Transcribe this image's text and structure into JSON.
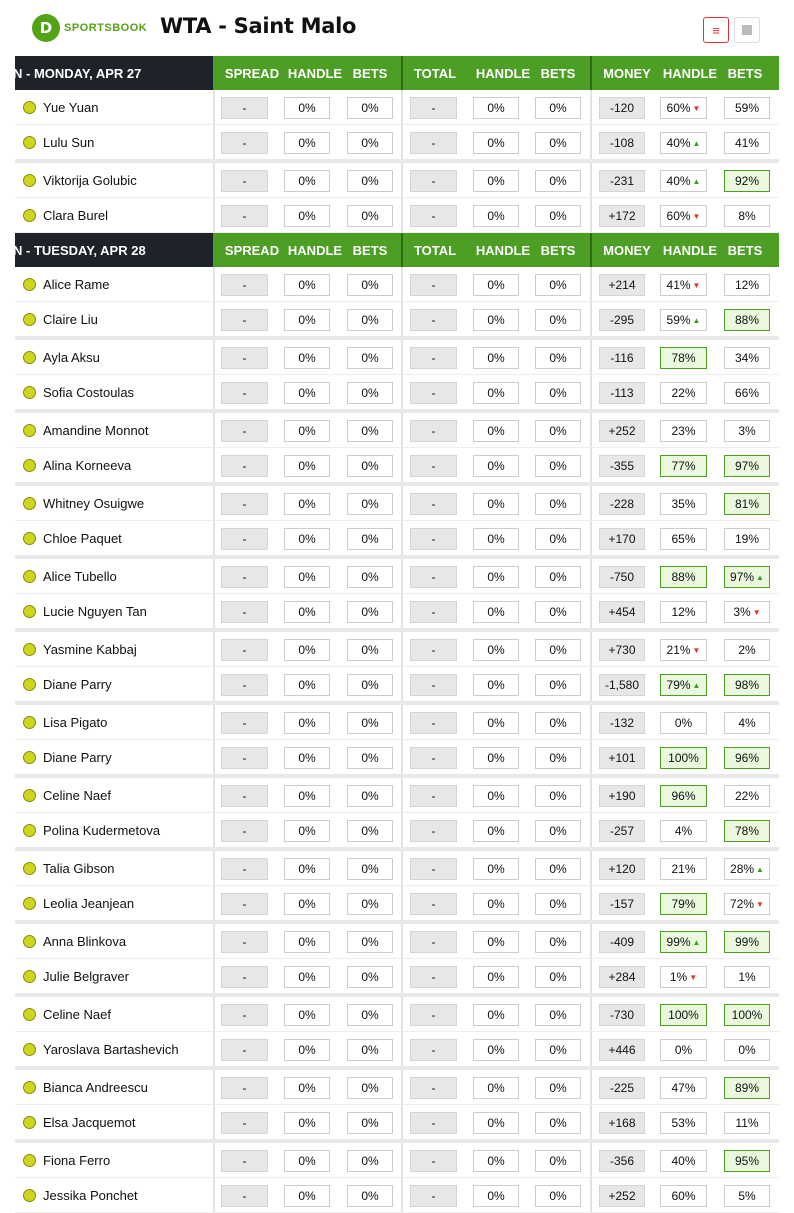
{
  "header": {
    "logo_letter": "D",
    "logo_text": "SPORTSBOOK",
    "title": "WTA - Saint Malo",
    "list_icon": "≡"
  },
  "columns": [
    "SPREAD",
    "HANDLE",
    "BETS",
    "TOTAL",
    "HANDLE",
    "BETS",
    "MONEY",
    "HANDLE",
    "BETS"
  ],
  "colors": {
    "accent_green": "#4c9e24",
    "dark": "#1e2329",
    "highlight": "#eaf8de",
    "up": "#3a9e1f",
    "down": "#dd3333"
  },
  "sections": [
    {
      "date": "N - MONDAY, APR 27",
      "players": [
        {
          "name": "Yue Yuan",
          "spread": "-",
          "s_handle": "0%",
          "s_bets": "0%",
          "total": "-",
          "t_handle": "0%",
          "t_bets": "0%",
          "money": "-120",
          "m_handle": "60%",
          "mh_arrow": "down",
          "mh_hl": false,
          "m_bets": "59%",
          "mb_arrow": "",
          "mb_hl": false,
          "gap": false
        },
        {
          "name": "Lulu Sun",
          "spread": "-",
          "s_handle": "0%",
          "s_bets": "0%",
          "total": "-",
          "t_handle": "0%",
          "t_bets": "0%",
          "money": "-108",
          "m_handle": "40%",
          "mh_arrow": "up",
          "mh_hl": false,
          "m_bets": "41%",
          "mb_arrow": "",
          "mb_hl": false,
          "gap": true
        },
        {
          "name": "Viktorija Golubic",
          "spread": "-",
          "s_handle": "0%",
          "s_bets": "0%",
          "total": "-",
          "t_handle": "0%",
          "t_bets": "0%",
          "money": "-231",
          "m_handle": "40%",
          "mh_arrow": "up",
          "mh_hl": false,
          "m_bets": "92%",
          "mb_arrow": "",
          "mb_hl": true,
          "gap": false
        },
        {
          "name": "Clara Burel",
          "spread": "-",
          "s_handle": "0%",
          "s_bets": "0%",
          "total": "-",
          "t_handle": "0%",
          "t_bets": "0%",
          "money": "+172",
          "m_handle": "60%",
          "mh_arrow": "down",
          "mh_hl": false,
          "m_bets": "8%",
          "mb_arrow": "",
          "mb_hl": false,
          "gap": false
        }
      ]
    },
    {
      "date": "N - TUESDAY, APR 28",
      "players": [
        {
          "name": "Alice Rame",
          "spread": "-",
          "s_handle": "0%",
          "s_bets": "0%",
          "total": "-",
          "t_handle": "0%",
          "t_bets": "0%",
          "money": "+214",
          "m_handle": "41%",
          "mh_arrow": "down",
          "mh_hl": false,
          "m_bets": "12%",
          "mb_arrow": "",
          "mb_hl": false,
          "gap": false
        },
        {
          "name": "Claire Liu",
          "spread": "-",
          "s_handle": "0%",
          "s_bets": "0%",
          "total": "-",
          "t_handle": "0%",
          "t_bets": "0%",
          "money": "-295",
          "m_handle": "59%",
          "mh_arrow": "up",
          "mh_hl": false,
          "m_bets": "88%",
          "mb_arrow": "",
          "mb_hl": true,
          "gap": true
        },
        {
          "name": "Ayla Aksu",
          "spread": "-",
          "s_handle": "0%",
          "s_bets": "0%",
          "total": "-",
          "t_handle": "0%",
          "t_bets": "0%",
          "money": "-116",
          "m_handle": "78%",
          "mh_arrow": "",
          "mh_hl": true,
          "m_bets": "34%",
          "mb_arrow": "",
          "mb_hl": false,
          "gap": false
        },
        {
          "name": "Sofia Costoulas",
          "spread": "-",
          "s_handle": "0%",
          "s_bets": "0%",
          "total": "-",
          "t_handle": "0%",
          "t_bets": "0%",
          "money": "-113",
          "m_handle": "22%",
          "mh_arrow": "",
          "mh_hl": false,
          "m_bets": "66%",
          "mb_arrow": "",
          "mb_hl": false,
          "gap": true
        },
        {
          "name": "Amandine Monnot",
          "spread": "-",
          "s_handle": "0%",
          "s_bets": "0%",
          "total": "-",
          "t_handle": "0%",
          "t_bets": "0%",
          "money": "+252",
          "m_handle": "23%",
          "mh_arrow": "",
          "mh_hl": false,
          "m_bets": "3%",
          "mb_arrow": "",
          "mb_hl": false,
          "gap": false
        },
        {
          "name": "Alina Korneeva",
          "spread": "-",
          "s_handle": "0%",
          "s_bets": "0%",
          "total": "-",
          "t_handle": "0%",
          "t_bets": "0%",
          "money": "-355",
          "m_handle": "77%",
          "mh_arrow": "",
          "mh_hl": true,
          "m_bets": "97%",
          "mb_arrow": "",
          "mb_hl": true,
          "gap": true
        },
        {
          "name": "Whitney Osuigwe",
          "spread": "-",
          "s_handle": "0%",
          "s_bets": "0%",
          "total": "-",
          "t_handle": "0%",
          "t_bets": "0%",
          "money": "-228",
          "m_handle": "35%",
          "mh_arrow": "",
          "mh_hl": false,
          "m_bets": "81%",
          "mb_arrow": "",
          "mb_hl": true,
          "gap": false
        },
        {
          "name": "Chloe Paquet",
          "spread": "-",
          "s_handle": "0%",
          "s_bets": "0%",
          "total": "-",
          "t_handle": "0%",
          "t_bets": "0%",
          "money": "+170",
          "m_handle": "65%",
          "mh_arrow": "",
          "mh_hl": false,
          "m_bets": "19%",
          "mb_arrow": "",
          "mb_hl": false,
          "gap": true
        },
        {
          "name": "Alice Tubello",
          "spread": "-",
          "s_handle": "0%",
          "s_bets": "0%",
          "total": "-",
          "t_handle": "0%",
          "t_bets": "0%",
          "money": "-750",
          "m_handle": "88%",
          "mh_arrow": "",
          "mh_hl": true,
          "m_bets": "97%",
          "mb_arrow": "up",
          "mb_hl": true,
          "gap": false
        },
        {
          "name": "Lucie Nguyen Tan",
          "spread": "-",
          "s_handle": "0%",
          "s_bets": "0%",
          "total": "-",
          "t_handle": "0%",
          "t_bets": "0%",
          "money": "+454",
          "m_handle": "12%",
          "mh_arrow": "",
          "mh_hl": false,
          "m_bets": "3%",
          "mb_arrow": "down",
          "mb_hl": false,
          "gap": true
        },
        {
          "name": "Yasmine Kabbaj",
          "spread": "-",
          "s_handle": "0%",
          "s_bets": "0%",
          "total": "-",
          "t_handle": "0%",
          "t_bets": "0%",
          "money": "+730",
          "m_handle": "21%",
          "mh_arrow": "down",
          "mh_hl": false,
          "m_bets": "2%",
          "mb_arrow": "",
          "mb_hl": false,
          "gap": false
        },
        {
          "name": "Diane Parry",
          "spread": "-",
          "s_handle": "0%",
          "s_bets": "0%",
          "total": "-",
          "t_handle": "0%",
          "t_bets": "0%",
          "money": "-1,580",
          "m_handle": "79%",
          "mh_arrow": "up",
          "mh_hl": true,
          "m_bets": "98%",
          "mb_arrow": "",
          "mb_hl": true,
          "gap": true
        },
        {
          "name": "Lisa Pigato",
          "spread": "-",
          "s_handle": "0%",
          "s_bets": "0%",
          "total": "-",
          "t_handle": "0%",
          "t_bets": "0%",
          "money": "-132",
          "m_handle": "0%",
          "mh_arrow": "",
          "mh_hl": false,
          "m_bets": "4%",
          "mb_arrow": "",
          "mb_hl": false,
          "gap": false
        },
        {
          "name": "Diane Parry",
          "spread": "-",
          "s_handle": "0%",
          "s_bets": "0%",
          "total": "-",
          "t_handle": "0%",
          "t_bets": "0%",
          "money": "+101",
          "m_handle": "100%",
          "mh_arrow": "",
          "mh_hl": true,
          "m_bets": "96%",
          "mb_arrow": "",
          "mb_hl": true,
          "gap": true
        },
        {
          "name": "Celine Naef",
          "spread": "-",
          "s_handle": "0%",
          "s_bets": "0%",
          "total": "-",
          "t_handle": "0%",
          "t_bets": "0%",
          "money": "+190",
          "m_handle": "96%",
          "mh_arrow": "",
          "mh_hl": true,
          "m_bets": "22%",
          "mb_arrow": "",
          "mb_hl": false,
          "gap": false
        },
        {
          "name": "Polina Kudermetova",
          "spread": "-",
          "s_handle": "0%",
          "s_bets": "0%",
          "total": "-",
          "t_handle": "0%",
          "t_bets": "0%",
          "money": "-257",
          "m_handle": "4%",
          "mh_arrow": "",
          "mh_hl": false,
          "m_bets": "78%",
          "mb_arrow": "",
          "mb_hl": true,
          "gap": true
        },
        {
          "name": "Talia Gibson",
          "spread": "-",
          "s_handle": "0%",
          "s_bets": "0%",
          "total": "-",
          "t_handle": "0%",
          "t_bets": "0%",
          "money": "+120",
          "m_handle": "21%",
          "mh_arrow": "",
          "mh_hl": false,
          "m_bets": "28%",
          "mb_arrow": "up",
          "mb_hl": false,
          "gap": false
        },
        {
          "name": "Leolia Jeanjean",
          "spread": "-",
          "s_handle": "0%",
          "s_bets": "0%",
          "total": "-",
          "t_handle": "0%",
          "t_bets": "0%",
          "money": "-157",
          "m_handle": "79%",
          "mh_arrow": "",
          "mh_hl": true,
          "m_bets": "72%",
          "mb_arrow": "down",
          "mb_hl": false,
          "gap": true
        },
        {
          "name": "Anna Blinkova",
          "spread": "-",
          "s_handle": "0%",
          "s_bets": "0%",
          "total": "-",
          "t_handle": "0%",
          "t_bets": "0%",
          "money": "-409",
          "m_handle": "99%",
          "mh_arrow": "up",
          "mh_hl": true,
          "m_bets": "99%",
          "mb_arrow": "",
          "mb_hl": true,
          "gap": false
        },
        {
          "name": "Julie Belgraver",
          "spread": "-",
          "s_handle": "0%",
          "s_bets": "0%",
          "total": "-",
          "t_handle": "0%",
          "t_bets": "0%",
          "money": "+284",
          "m_handle": "1%",
          "mh_arrow": "down",
          "mh_hl": false,
          "m_bets": "1%",
          "mb_arrow": "",
          "mb_hl": false,
          "gap": true
        },
        {
          "name": "Celine Naef",
          "spread": "-",
          "s_handle": "0%",
          "s_bets": "0%",
          "total": "-",
          "t_handle": "0%",
          "t_bets": "0%",
          "money": "-730",
          "m_handle": "100%",
          "mh_arrow": "",
          "mh_hl": true,
          "m_bets": "100%",
          "mb_arrow": "",
          "mb_hl": true,
          "gap": false
        },
        {
          "name": "Yaroslava Bartashevich",
          "spread": "-",
          "s_handle": "0%",
          "s_bets": "0%",
          "total": "-",
          "t_handle": "0%",
          "t_bets": "0%",
          "money": "+446",
          "m_handle": "0%",
          "mh_arrow": "",
          "mh_hl": false,
          "m_bets": "0%",
          "mb_arrow": "",
          "mb_hl": false,
          "gap": true
        },
        {
          "name": "Bianca Andreescu",
          "spread": "-",
          "s_handle": "0%",
          "s_bets": "0%",
          "total": "-",
          "t_handle": "0%",
          "t_bets": "0%",
          "money": "-225",
          "m_handle": "47%",
          "mh_arrow": "",
          "mh_hl": false,
          "m_bets": "89%",
          "mb_arrow": "",
          "mb_hl": true,
          "gap": false
        },
        {
          "name": "Elsa Jacquemot",
          "spread": "-",
          "s_handle": "0%",
          "s_bets": "0%",
          "total": "-",
          "t_handle": "0%",
          "t_bets": "0%",
          "money": "+168",
          "m_handle": "53%",
          "mh_arrow": "",
          "mh_hl": false,
          "m_bets": "11%",
          "mb_arrow": "",
          "mb_hl": false,
          "gap": true
        },
        {
          "name": "Fiona Ferro",
          "spread": "-",
          "s_handle": "0%",
          "s_bets": "0%",
          "total": "-",
          "t_handle": "0%",
          "t_bets": "0%",
          "money": "-356",
          "m_handle": "40%",
          "mh_arrow": "",
          "mh_hl": false,
          "m_bets": "95%",
          "mb_arrow": "",
          "mb_hl": true,
          "gap": false
        },
        {
          "name": "Jessika Ponchet",
          "spread": "-",
          "s_handle": "0%",
          "s_bets": "0%",
          "total": "-",
          "t_handle": "0%",
          "t_bets": "0%",
          "money": "+252",
          "m_handle": "60%",
          "mh_arrow": "",
          "mh_hl": false,
          "m_bets": "5%",
          "mb_arrow": "",
          "mb_hl": false,
          "gap": false
        }
      ]
    }
  ]
}
